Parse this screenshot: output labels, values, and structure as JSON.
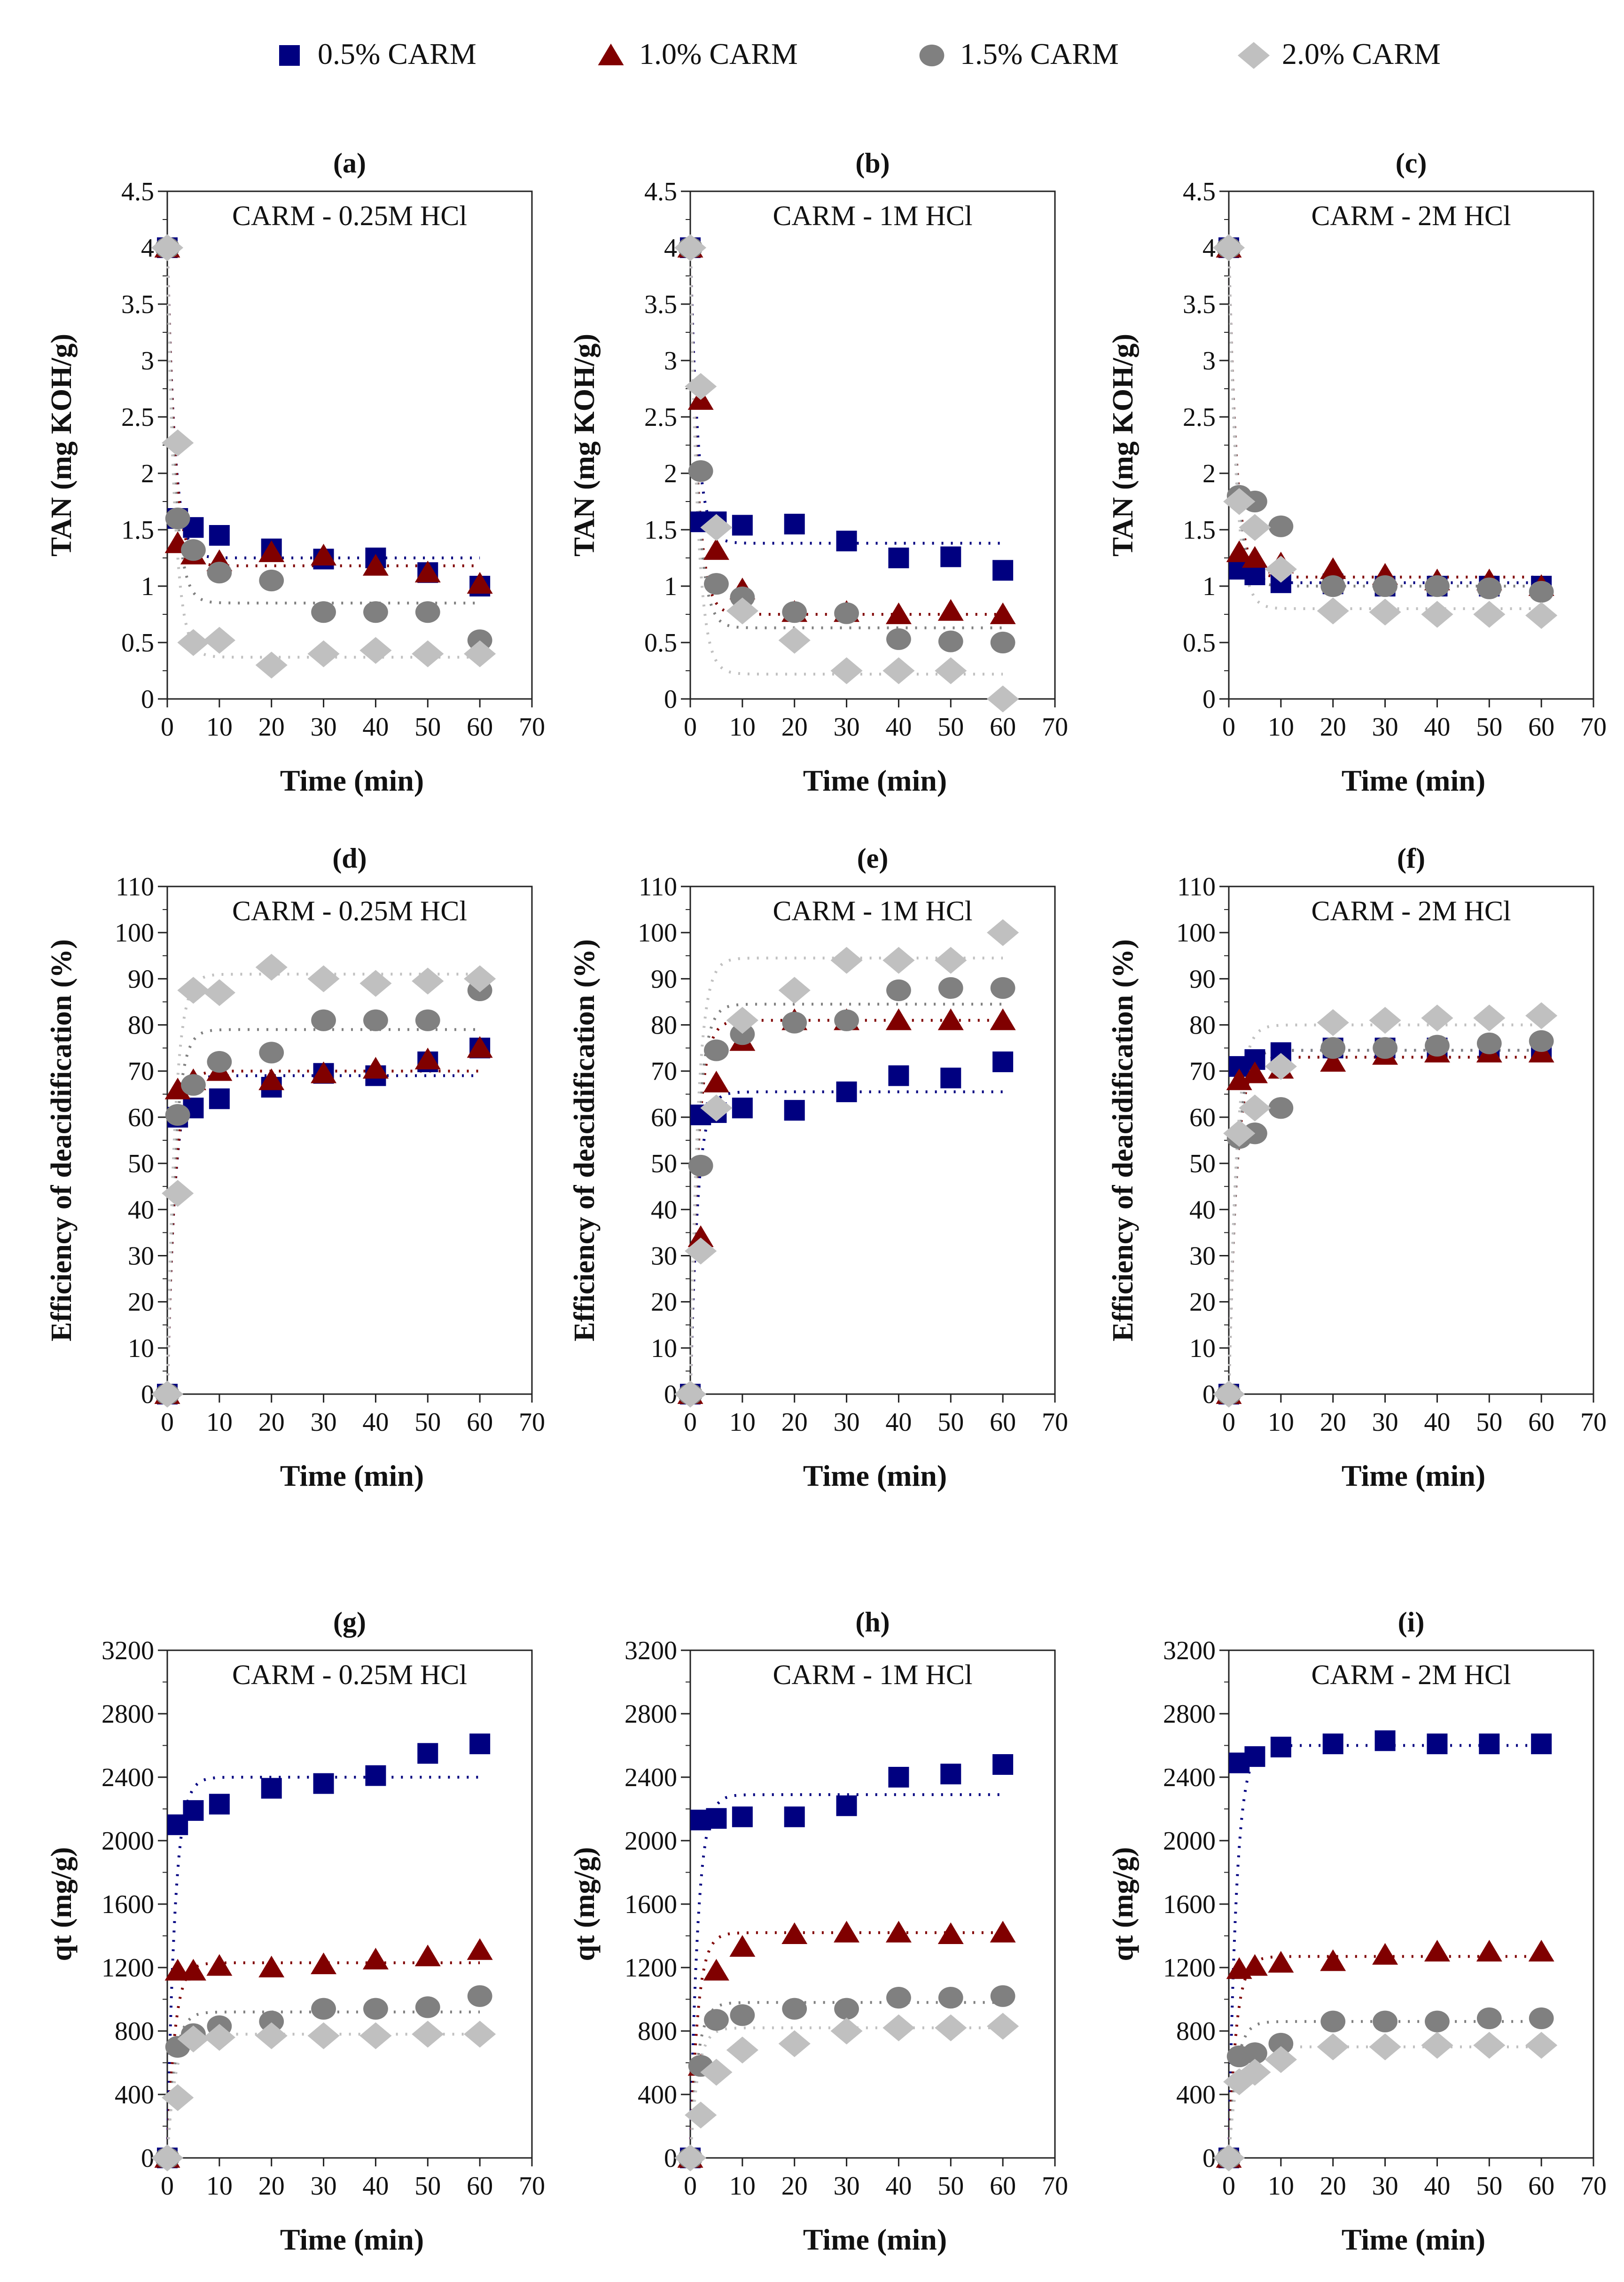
{
  "legend": {
    "items": [
      {
        "label": "0.5% CARM",
        "marker": "square",
        "color": "#000080"
      },
      {
        "label": "1.0% CARM",
        "marker": "triangle",
        "color": "#800000"
      },
      {
        "label": "1.5% CARM",
        "marker": "circle",
        "color": "#808080"
      },
      {
        "label": "2.0% CARM",
        "marker": "diamond",
        "color": "#c0c0c0"
      }
    ],
    "placement": "top"
  },
  "chart_data": [
    {
      "panel": "(a)",
      "type": "scatter",
      "title": "CARM - 0.25M HCl",
      "xlabel": "Time (min)",
      "ylabel": "TAN (mg KOH/g)",
      "xlim": [
        0,
        70
      ],
      "ylim": [
        0,
        4.5
      ],
      "yticks": [
        0,
        0.5,
        1,
        1.5,
        2,
        2.5,
        3,
        3.5,
        4,
        4.5
      ],
      "x": [
        0,
        2,
        5,
        10,
        20,
        30,
        40,
        50,
        60
      ],
      "series": [
        {
          "name": "0.5% CARM",
          "values": [
            4.0,
            1.6,
            1.52,
            1.45,
            1.33,
            1.24,
            1.25,
            1.12,
            1.0
          ],
          "fit_plateau": 1.25
        },
        {
          "name": "1.0% CARM",
          "values": [
            4.0,
            1.38,
            1.28,
            1.22,
            1.3,
            1.27,
            1.18,
            1.12,
            1.02
          ],
          "fit_plateau": 1.18
        },
        {
          "name": "1.5% CARM",
          "values": [
            4.0,
            1.6,
            1.32,
            1.12,
            1.05,
            0.77,
            0.77,
            0.77,
            0.52
          ],
          "fit_plateau": 0.85
        },
        {
          "name": "2.0% CARM",
          "values": [
            4.0,
            2.27,
            0.5,
            0.52,
            0.3,
            0.4,
            0.43,
            0.4,
            0.4
          ],
          "fit_plateau": 0.37
        }
      ]
    },
    {
      "panel": "(b)",
      "type": "scatter",
      "title": "CARM - 1M HCl",
      "xlabel": "Time (min)",
      "ylabel": "TAN (mg KOH/g)",
      "xlim": [
        0,
        70
      ],
      "ylim": [
        0,
        4.5
      ],
      "yticks": [
        0,
        0.5,
        1,
        1.5,
        2,
        2.5,
        3,
        3.5,
        4,
        4.5
      ],
      "x": [
        0,
        2,
        5,
        10,
        20,
        30,
        40,
        50,
        60
      ],
      "series": [
        {
          "name": "0.5% CARM",
          "values": [
            4.0,
            1.57,
            1.57,
            1.54,
            1.55,
            1.4,
            1.25,
            1.26,
            1.14
          ],
          "fit_plateau": 1.38
        },
        {
          "name": "1.0% CARM",
          "values": [
            4.0,
            2.65,
            1.32,
            0.97,
            0.77,
            0.77,
            0.75,
            0.78,
            0.75
          ],
          "fit_plateau": 0.75
        },
        {
          "name": "1.5% CARM",
          "values": [
            4.0,
            2.02,
            1.02,
            0.9,
            0.77,
            0.76,
            0.53,
            0.51,
            0.5
          ],
          "fit_plateau": 0.63
        },
        {
          "name": "2.0% CARM",
          "values": [
            4.0,
            2.77,
            1.52,
            0.78,
            0.52,
            0.25,
            0.25,
            0.25,
            0.0
          ],
          "fit_plateau": 0.22
        }
      ]
    },
    {
      "panel": "(c)",
      "type": "scatter",
      "title": "CARM - 2M HCl",
      "xlabel": "Time (min)",
      "ylabel": "TAN (mg KOH/g)",
      "xlim": [
        0,
        70
      ],
      "ylim": [
        0,
        4.5
      ],
      "yticks": [
        0,
        0.5,
        1,
        1.5,
        2,
        2.5,
        3,
        3.5,
        4,
        4.5
      ],
      "x": [
        0,
        2,
        5,
        10,
        20,
        30,
        40,
        50,
        60
      ],
      "series": [
        {
          "name": "0.5% CARM",
          "values": [
            4.0,
            1.15,
            1.1,
            1.03,
            1.02,
            1.0,
            1.0,
            1.0,
            1.0
          ],
          "fit_plateau": 1.03
        },
        {
          "name": "1.0% CARM",
          "values": [
            4.0,
            1.3,
            1.25,
            1.2,
            1.15,
            1.1,
            1.05,
            1.05,
            1.0
          ],
          "fit_plateau": 1.08
        },
        {
          "name": "1.5% CARM",
          "values": [
            4.0,
            1.8,
            1.75,
            1.53,
            1.0,
            1.0,
            1.0,
            0.98,
            0.95
          ],
          "fit_plateau": 1.0
        },
        {
          "name": "2.0% CARM",
          "values": [
            4.0,
            1.75,
            1.52,
            1.15,
            0.78,
            0.77,
            0.75,
            0.75,
            0.74
          ],
          "fit_plateau": 0.8
        }
      ]
    },
    {
      "panel": "(d)",
      "type": "scatter",
      "title": "CARM - 0.25M HCl",
      "xlabel": "Time (min)",
      "ylabel": "Efficiency of deacidification (%)",
      "xlim": [
        0,
        70
      ],
      "ylim": [
        0,
        110
      ],
      "yticks": [
        0,
        10,
        20,
        30,
        40,
        50,
        60,
        70,
        80,
        90,
        100,
        110
      ],
      "x": [
        0,
        2,
        5,
        10,
        20,
        30,
        40,
        50,
        60
      ],
      "series": [
        {
          "name": "0.5% CARM",
          "values": [
            0,
            60,
            62,
            64,
            66.5,
            69.5,
            69,
            72,
            75
          ],
          "fit_plateau": 69
        },
        {
          "name": "1.0% CARM",
          "values": [
            0,
            66,
            68,
            70,
            68,
            69.5,
            70.5,
            72.5,
            75
          ],
          "fit_plateau": 70
        },
        {
          "name": "1.5% CARM",
          "values": [
            0,
            60.5,
            67,
            72,
            74,
            81,
            81,
            81,
            87.5
          ],
          "fit_plateau": 79
        },
        {
          "name": "2.0% CARM",
          "values": [
            0,
            43.5,
            87.5,
            87,
            92.5,
            90,
            89,
            89.5,
            90
          ],
          "fit_plateau": 91
        }
      ]
    },
    {
      "panel": "(e)",
      "type": "scatter",
      "title": "CARM - 1M HCl",
      "xlabel": "Time (min)",
      "ylabel": "Efficiency of deacidification (%)",
      "xlim": [
        0,
        70
      ],
      "ylim": [
        0,
        110
      ],
      "yticks": [
        0,
        10,
        20,
        30,
        40,
        50,
        60,
        70,
        80,
        90,
        100,
        110
      ],
      "x": [
        0,
        2,
        5,
        10,
        20,
        30,
        40,
        50,
        60
      ],
      "series": [
        {
          "name": "0.5% CARM",
          "values": [
            0,
            60.5,
            61,
            62,
            61.5,
            65.5,
            69,
            68.5,
            72
          ],
          "fit_plateau": 65.5
        },
        {
          "name": "1.0% CARM",
          "values": [
            0,
            34,
            67.5,
            76.5,
            81,
            81,
            81,
            81,
            81
          ],
          "fit_plateau": 81
        },
        {
          "name": "1.5% CARM",
          "values": [
            0,
            49.5,
            74.5,
            78,
            80.5,
            81,
            87.5,
            88,
            88
          ],
          "fit_plateau": 84.5
        },
        {
          "name": "2.0% CARM",
          "values": [
            0,
            31,
            62,
            81,
            87.5,
            94,
            94,
            94,
            100
          ],
          "fit_plateau": 94.5
        }
      ]
    },
    {
      "panel": "(f)",
      "type": "scatter",
      "title": "CARM - 2M HCl",
      "xlabel": "Time (min)",
      "ylabel": "Efficiency of deacidification (%)",
      "xlim": [
        0,
        70
      ],
      "ylim": [
        0,
        110
      ],
      "yticks": [
        0,
        10,
        20,
        30,
        40,
        50,
        60,
        70,
        80,
        90,
        100,
        110
      ],
      "x": [
        0,
        2,
        5,
        10,
        20,
        30,
        40,
        50,
        60
      ],
      "series": [
        {
          "name": "0.5% CARM",
          "values": [
            0,
            71,
            72.5,
            74,
            75,
            75,
            75,
            75,
            75
          ],
          "fit_plateau": 74.5
        },
        {
          "name": "1.0% CARM",
          "values": [
            0,
            68,
            69.5,
            70.5,
            72,
            73.5,
            74,
            74,
            74
          ],
          "fit_plateau": 73
        },
        {
          "name": "1.5% CARM",
          "values": [
            0,
            55.5,
            56.5,
            62,
            75,
            75,
            75.5,
            76,
            76.5
          ],
          "fit_plateau": 74.5
        },
        {
          "name": "2.0% CARM",
          "values": [
            0,
            56.5,
            62,
            71,
            80.5,
            81,
            81.5,
            81.5,
            82
          ],
          "fit_plateau": 80
        }
      ]
    },
    {
      "panel": "(g)",
      "type": "scatter",
      "title": "CARM - 0.25M HCl",
      "xlabel": "Time (min)",
      "ylabel": "qt (mg/g)",
      "xlim": [
        0,
        70
      ],
      "ylim": [
        0,
        3200
      ],
      "yticks": [
        0,
        400,
        800,
        1200,
        1600,
        2000,
        2400,
        2800,
        3200
      ],
      "x": [
        0,
        2,
        5,
        10,
        20,
        30,
        40,
        50,
        60
      ],
      "series": [
        {
          "name": "0.5% CARM",
          "values": [
            0,
            2100,
            2190,
            2230,
            2330,
            2360,
            2410,
            2550,
            2610
          ],
          "fit_plateau": 2400
        },
        {
          "name": "1.0% CARM",
          "values": [
            0,
            1180,
            1180,
            1210,
            1200,
            1220,
            1250,
            1270,
            1310
          ],
          "fit_plateau": 1230
        },
        {
          "name": "1.5% CARM",
          "values": [
            0,
            700,
            780,
            830,
            860,
            940,
            940,
            950,
            1020
          ],
          "fit_plateau": 920
        },
        {
          "name": "2.0% CARM",
          "values": [
            0,
            380,
            750,
            760,
            770,
            770,
            770,
            780,
            780
          ],
          "fit_plateau": 780
        }
      ]
    },
    {
      "panel": "(h)",
      "type": "scatter",
      "title": "CARM - 1M HCl",
      "xlabel": "Time (min)",
      "ylabel": "qt (mg/g)",
      "xlim": [
        0,
        70
      ],
      "ylim": [
        0,
        3200
      ],
      "yticks": [
        0,
        400,
        800,
        1200,
        1600,
        2000,
        2400,
        2800,
        3200
      ],
      "x": [
        0,
        2,
        5,
        10,
        20,
        30,
        40,
        50,
        60
      ],
      "series": [
        {
          "name": "0.5% CARM",
          "values": [
            0,
            2130,
            2140,
            2150,
            2150,
            2220,
            2400,
            2420,
            2480
          ],
          "fit_plateau": 2290
        },
        {
          "name": "1.0% CARM",
          "values": [
            0,
            580,
            1180,
            1330,
            1410,
            1420,
            1420,
            1410,
            1420
          ],
          "fit_plateau": 1420
        },
        {
          "name": "1.5% CARM",
          "values": [
            0,
            580,
            870,
            900,
            940,
            940,
            1010,
            1010,
            1020
          ],
          "fit_plateau": 980
        },
        {
          "name": "2.0% CARM",
          "values": [
            0,
            270,
            540,
            680,
            720,
            800,
            820,
            820,
            830
          ],
          "fit_plateau": 820
        }
      ]
    },
    {
      "panel": "(i)",
      "type": "scatter",
      "title": "CARM - 2M HCl",
      "xlabel": "Time (min)",
      "ylabel": "qt (mg/g)",
      "xlim": [
        0,
        70
      ],
      "ylim": [
        0,
        3200
      ],
      "yticks": [
        0,
        400,
        800,
        1200,
        1600,
        2000,
        2400,
        2800,
        3200
      ],
      "x": [
        0,
        2,
        5,
        10,
        20,
        30,
        40,
        50,
        60
      ],
      "series": [
        {
          "name": "0.5% CARM",
          "values": [
            0,
            2490,
            2530,
            2590,
            2610,
            2630,
            2610,
            2610,
            2610
          ],
          "fit_plateau": 2600
        },
        {
          "name": "1.0% CARM",
          "values": [
            0,
            1190,
            1210,
            1230,
            1240,
            1280,
            1300,
            1300,
            1300
          ],
          "fit_plateau": 1270
        },
        {
          "name": "1.5% CARM",
          "values": [
            0,
            640,
            660,
            720,
            860,
            860,
            860,
            880,
            880
          ],
          "fit_plateau": 860
        },
        {
          "name": "2.0% CARM",
          "values": [
            0,
            480,
            540,
            620,
            700,
            700,
            710,
            710,
            710
          ],
          "fit_plateau": 700
        }
      ]
    }
  ]
}
